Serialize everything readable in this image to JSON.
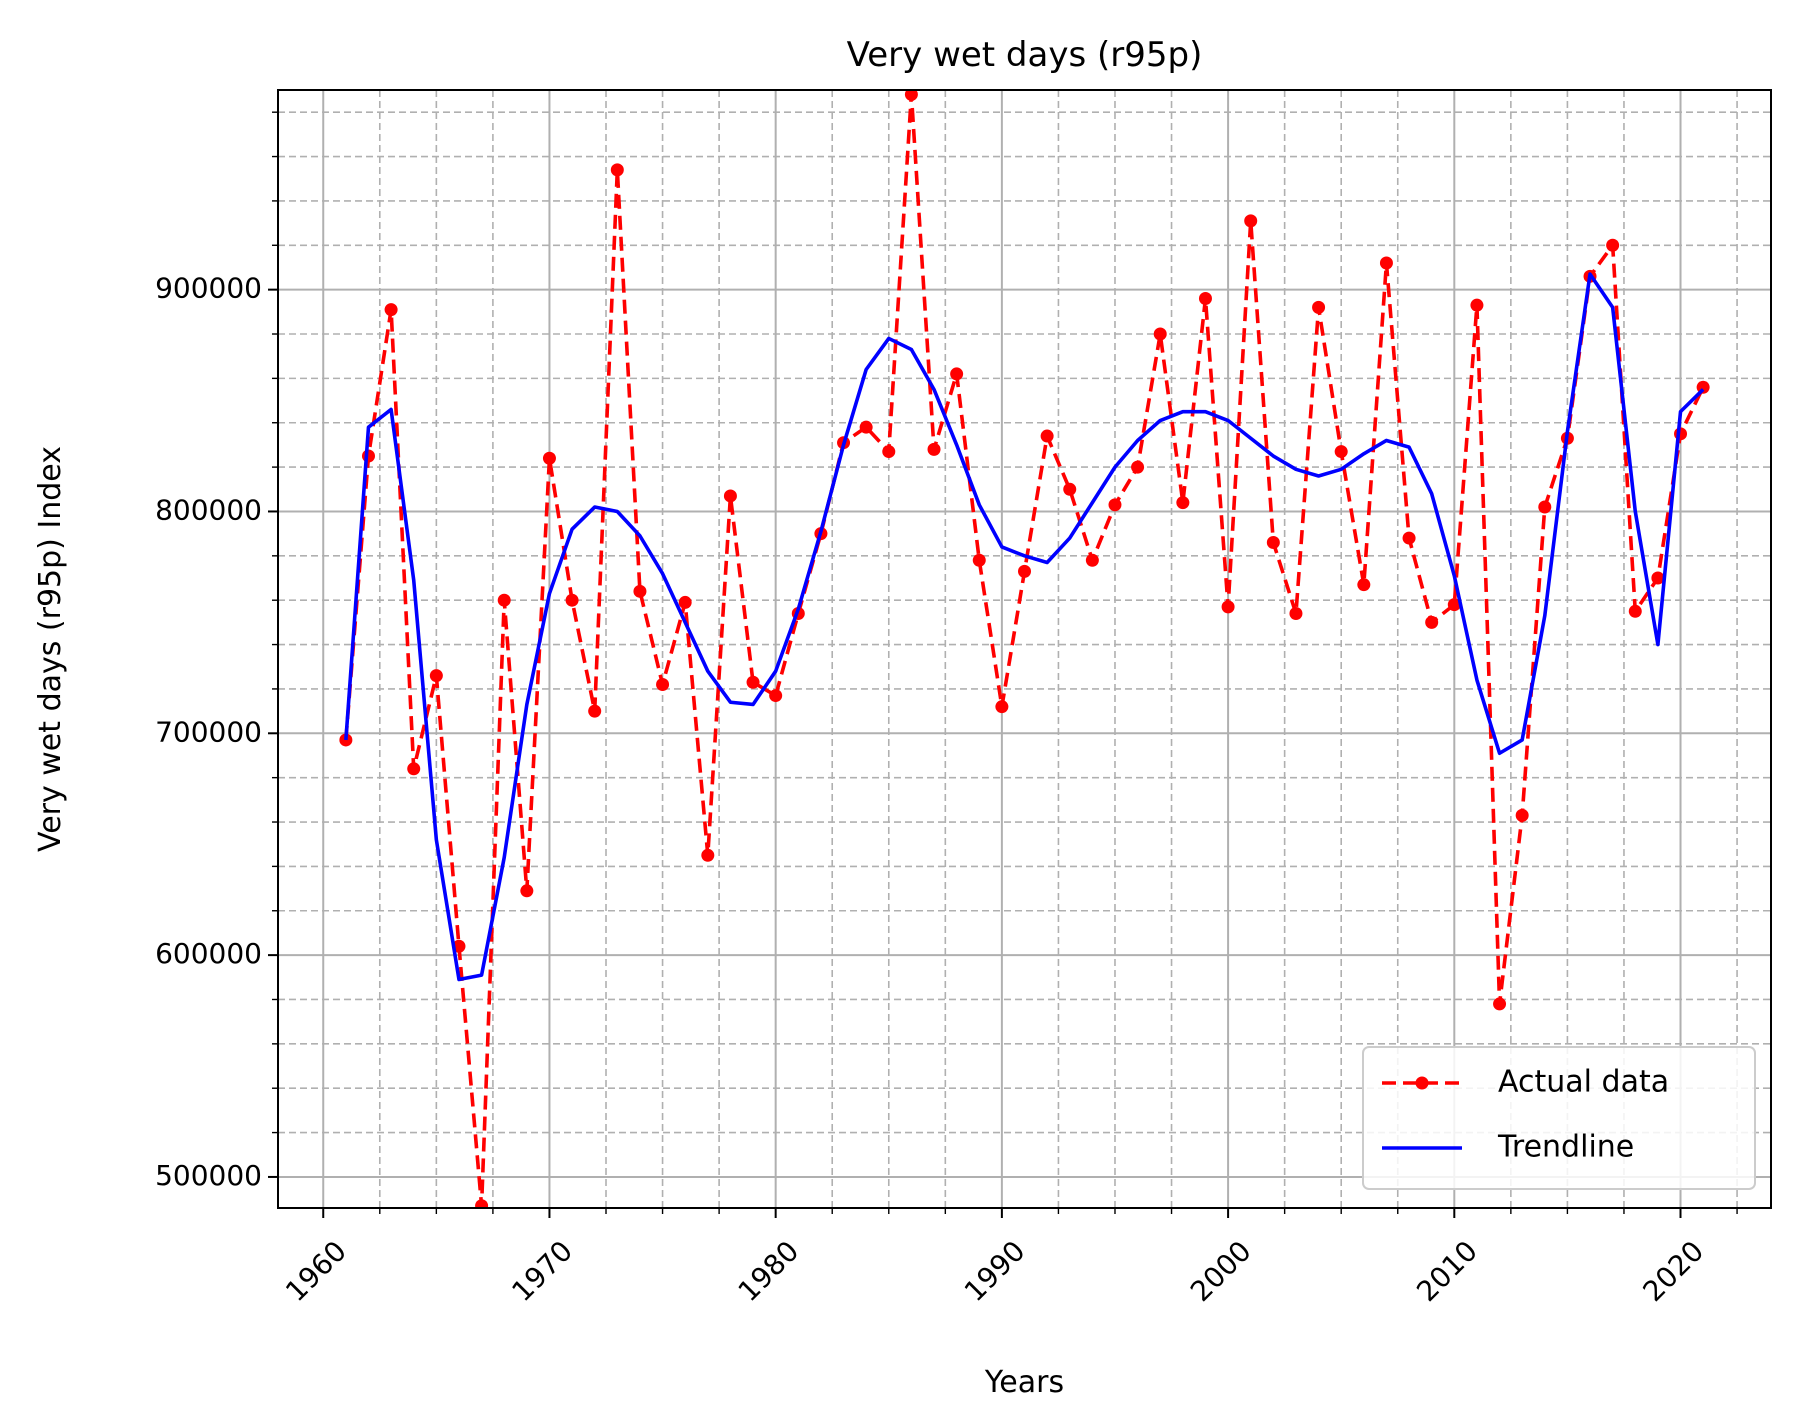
{
  "chart_data": {
    "type": "line",
    "title": "Very wet days (r95p)",
    "xlabel": "Years",
    "ylabel": "Very wet days (r95p) Index",
    "xlim": [
      1958,
      2024
    ],
    "ylim": [
      486000,
      990000
    ],
    "x_ticks": [
      1960,
      1970,
      1980,
      1990,
      2000,
      2010,
      2020
    ],
    "y_ticks": [
      500000,
      600000,
      700000,
      800000,
      900000
    ],
    "x_minor_step": 2.5,
    "y_minor_step": 20000,
    "grid": true,
    "legend_position": "lower-right",
    "x": [
      1961,
      1962,
      1963,
      1964,
      1965,
      1966,
      1967,
      1968,
      1969,
      1970,
      1971,
      1972,
      1973,
      1974,
      1975,
      1976,
      1977,
      1978,
      1979,
      1980,
      1981,
      1982,
      1983,
      1984,
      1985,
      1986,
      1987,
      1988,
      1989,
      1990,
      1991,
      1992,
      1993,
      1994,
      1995,
      1996,
      1997,
      1998,
      1999,
      2000,
      2001,
      2002,
      2003,
      2004,
      2005,
      2006,
      2007,
      2008,
      2009,
      2010,
      2011,
      2012,
      2013,
      2014,
      2015,
      2016,
      2017,
      2018,
      2019,
      2020,
      2021
    ],
    "series": [
      {
        "name": "Actual data",
        "color": "#ff0000",
        "style": "dashed-with-markers",
        "values": [
          697000,
          825000,
          891000,
          684000,
          726000,
          604000,
          487000,
          760000,
          629000,
          824000,
          760000,
          710000,
          954000,
          764000,
          722000,
          759000,
          645000,
          807000,
          723000,
          717000,
          754000,
          790000,
          831000,
          838000,
          827000,
          988000,
          828000,
          862000,
          778000,
          712000,
          773000,
          834000,
          810000,
          778000,
          803000,
          820000,
          880000,
          804000,
          896000,
          757000,
          931000,
          786000,
          754000,
          892000,
          827000,
          767000,
          912000,
          788000,
          750000,
          758000,
          893000,
          578000,
          663000,
          802000,
          833000,
          906000,
          920000,
          755000,
          770000,
          835000,
          856000
        ]
      },
      {
        "name": "Trendline",
        "color": "#0000ff",
        "style": "solid",
        "values": [
          697000,
          838000,
          846000,
          769000,
          652000,
          589000,
          591000,
          644000,
          713000,
          763000,
          792000,
          802000,
          800000,
          789000,
          772000,
          750000,
          728000,
          714000,
          713000,
          728000,
          756000,
          791000,
          830000,
          864000,
          878000,
          873000,
          855000,
          830000,
          803000,
          784000,
          780000,
          777000,
          788000,
          804000,
          820000,
          832000,
          841000,
          845000,
          845000,
          841000,
          833000,
          825000,
          819000,
          816000,
          819000,
          826000,
          832000,
          829000,
          808000,
          771000,
          724000,
          691000,
          697000,
          753000,
          836000,
          907000,
          892000,
          800000,
          740000,
          845000,
          855000
        ]
      }
    ]
  }
}
